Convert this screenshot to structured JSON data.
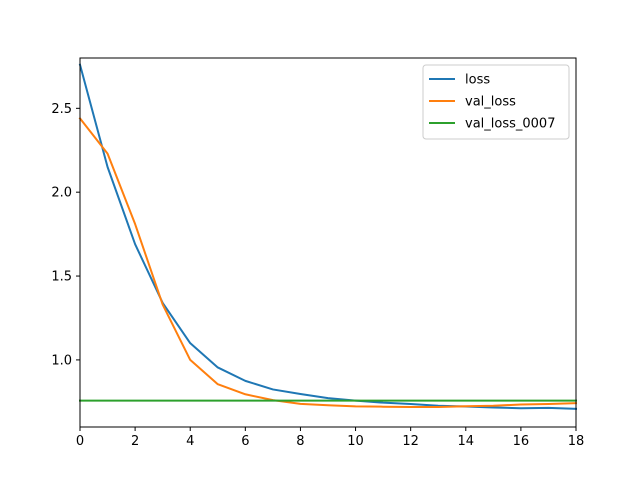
{
  "chart_data": {
    "type": "line",
    "title": "",
    "xlabel": "",
    "ylabel": "",
    "xlim": [
      0,
      18
    ],
    "ylim": [
      0.6,
      2.8
    ],
    "x_ticks": [
      0,
      2,
      4,
      6,
      8,
      10,
      12,
      14,
      16,
      18
    ],
    "x_tick_labels": [
      "0",
      "2",
      "4",
      "6",
      "8",
      "10",
      "12",
      "14",
      "16",
      "18"
    ],
    "y_ticks": [
      1.0,
      1.5,
      2.0,
      2.5
    ],
    "y_tick_labels": [
      "1.0",
      "1.5",
      "2.0",
      "2.5"
    ],
    "grid": false,
    "legend_position": "top-right",
    "x": [
      0,
      1,
      2,
      3,
      4,
      5,
      6,
      7,
      8,
      9,
      10,
      11,
      12,
      13,
      14,
      15,
      16,
      17,
      18
    ],
    "series": [
      {
        "name": "loss",
        "color": "#1f77b4",
        "values": [
          2.76,
          2.15,
          1.69,
          1.34,
          1.1,
          0.955,
          0.875,
          0.824,
          0.797,
          0.772,
          0.757,
          0.745,
          0.737,
          0.727,
          0.722,
          0.716,
          0.712,
          0.714,
          0.708
        ]
      },
      {
        "name": "val_loss",
        "color": "#ff7f0e",
        "values": [
          2.44,
          2.23,
          1.81,
          1.33,
          1.0,
          0.855,
          0.795,
          0.76,
          0.738,
          0.73,
          0.723,
          0.721,
          0.719,
          0.719,
          0.724,
          0.727,
          0.734,
          0.737,
          0.742
        ]
      },
      {
        "name": "val_loss_0007",
        "color": "#2ca02c",
        "values": [
          0.757,
          0.757,
          0.757,
          0.757,
          0.757,
          0.757,
          0.757,
          0.757,
          0.757,
          0.757,
          0.757,
          0.757,
          0.757,
          0.757,
          0.757,
          0.757,
          0.757,
          0.757,
          0.757
        ]
      }
    ]
  }
}
